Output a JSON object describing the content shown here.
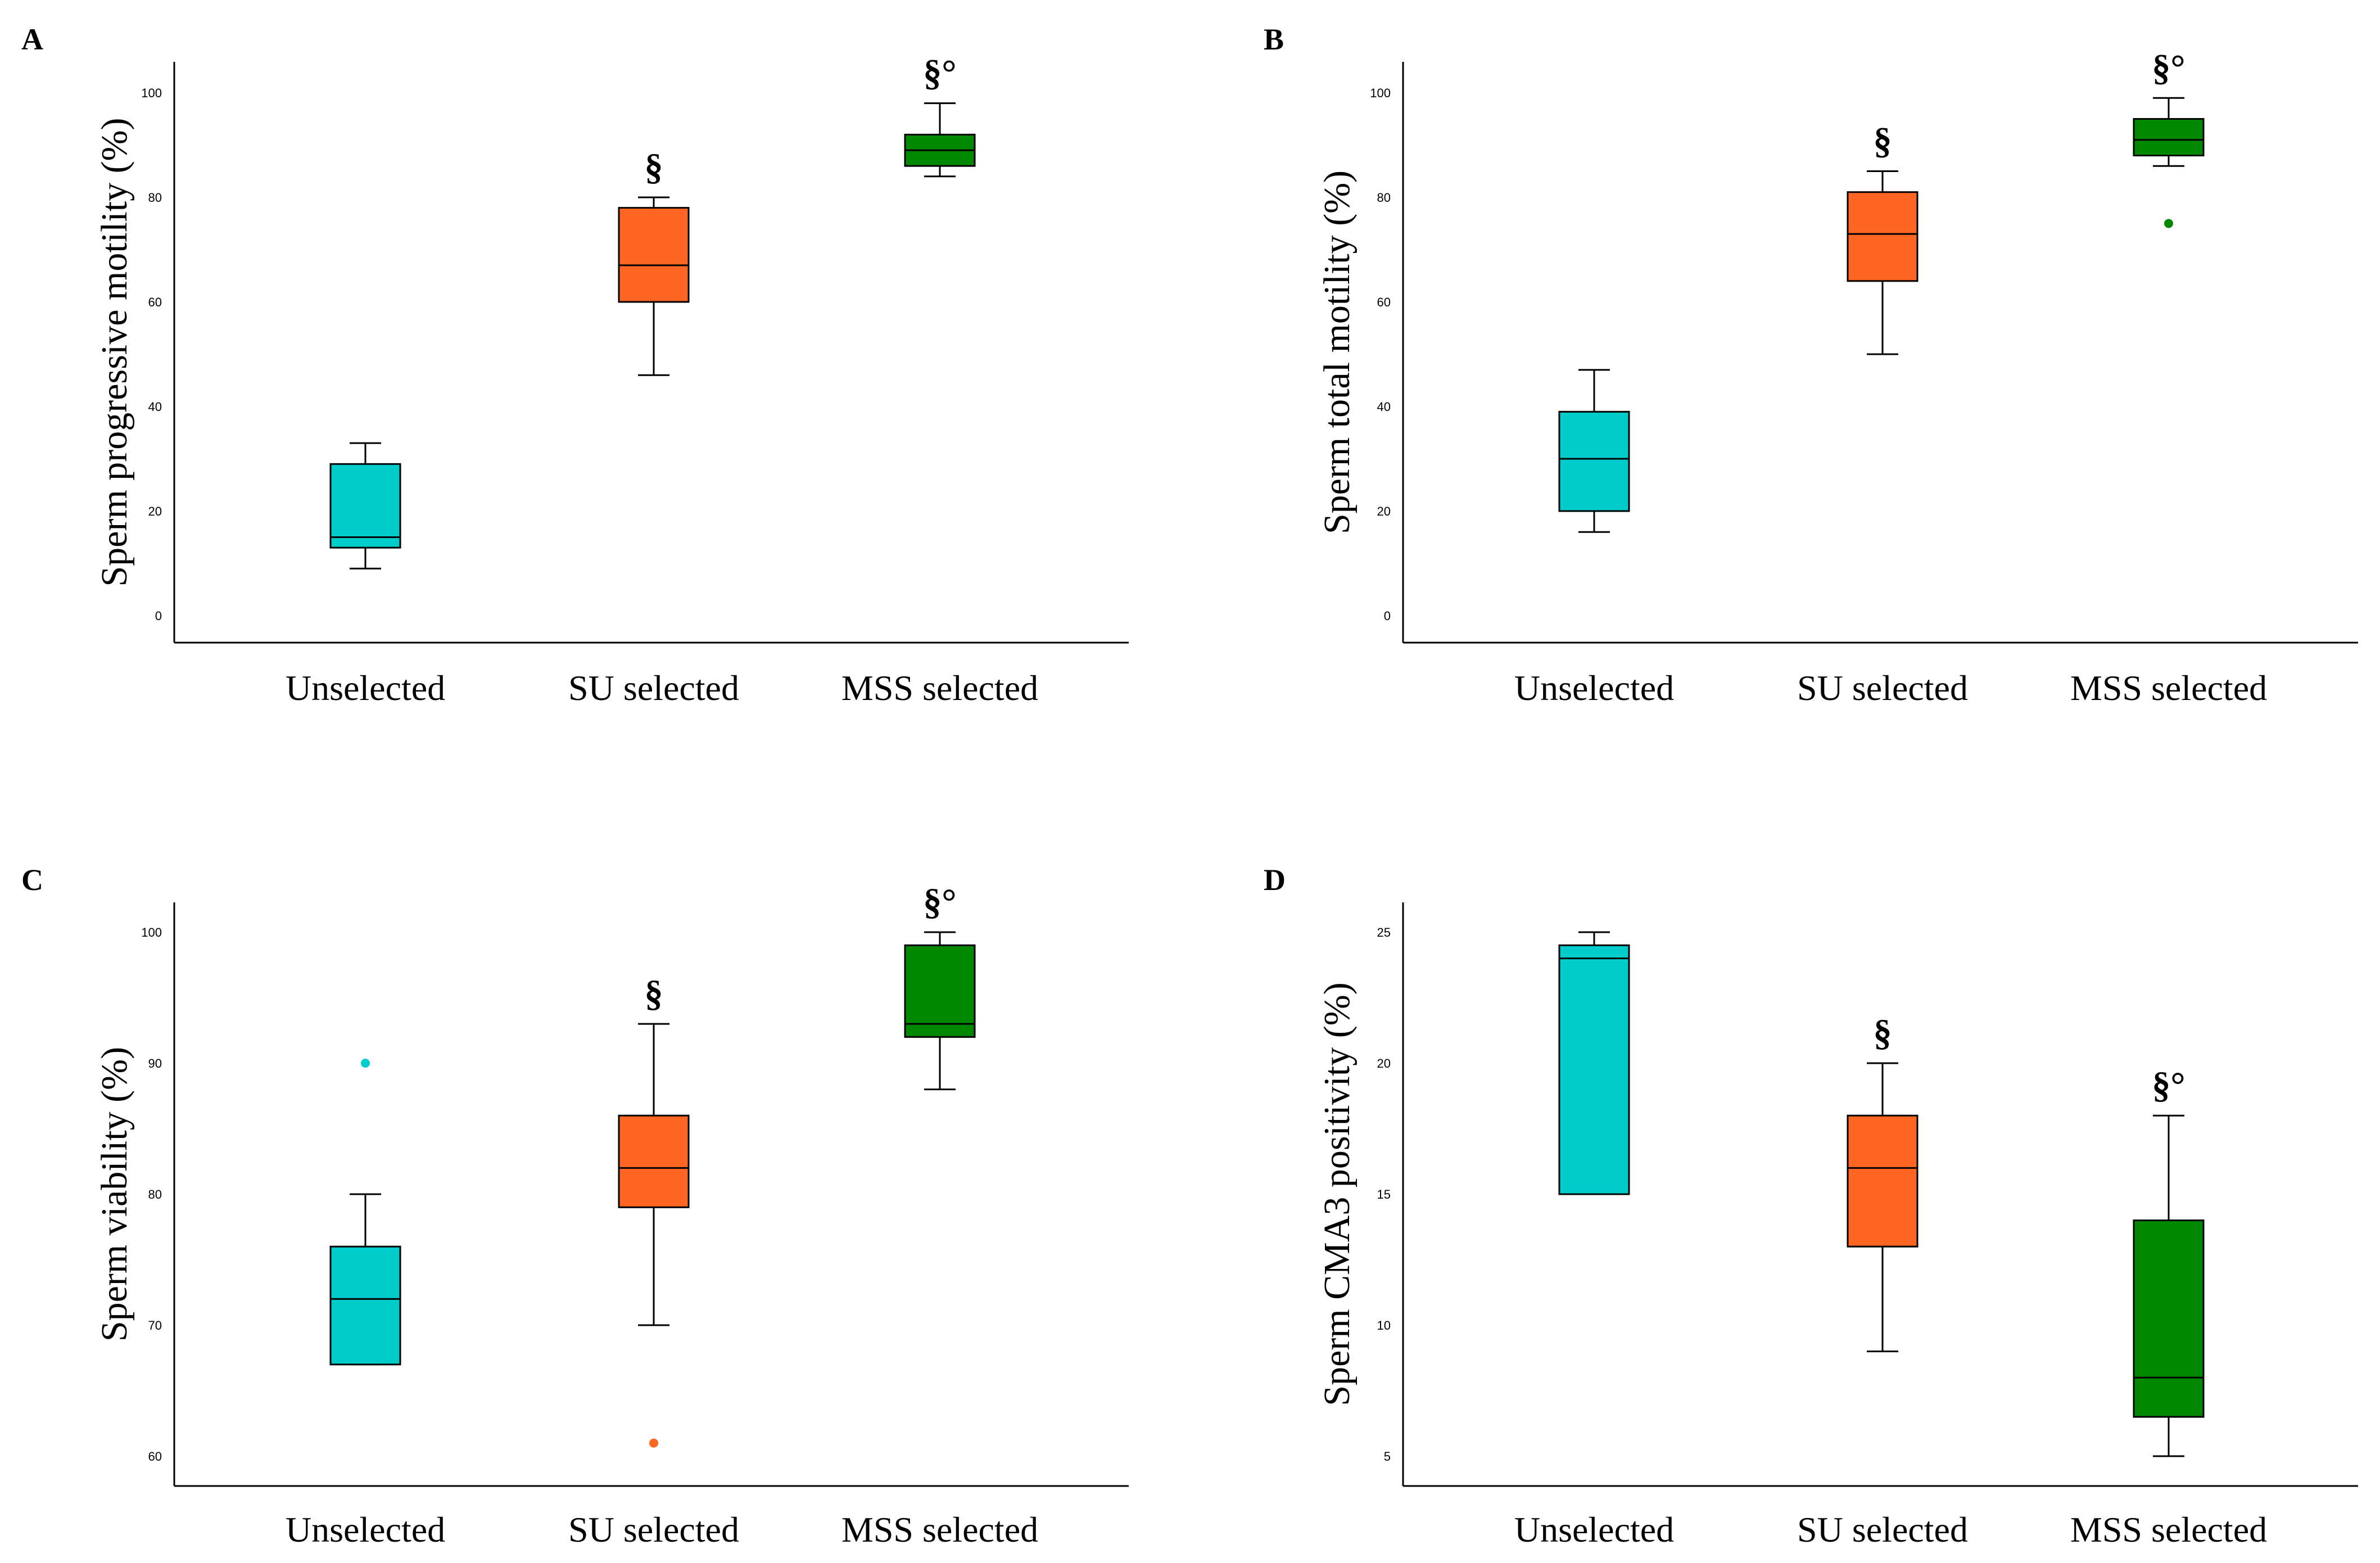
{
  "chart_data": [
    {
      "panel": "A",
      "type": "box",
      "ylabel": "Sperm progressive motility (%)",
      "ylim": [
        0,
        100
      ],
      "yticks": [
        0,
        20,
        40,
        60,
        80,
        100
      ],
      "categories": [
        "Unselected",
        "SU selected",
        "MSS selected"
      ],
      "boxes": [
        {
          "min": 9,
          "q1": 13,
          "median": 15,
          "q3": 29,
          "max": 33,
          "outliers": [],
          "color": "#00CCCC",
          "sig": ""
        },
        {
          "min": 46,
          "q1": 60,
          "median": 67,
          "q3": 78,
          "max": 80,
          "outliers": [],
          "color": "#FF6622",
          "sig": "§"
        },
        {
          "min": 84,
          "q1": 86,
          "median": 89,
          "q3": 92,
          "max": 98,
          "outliers": [],
          "color": "#008800",
          "sig": "§°"
        }
      ]
    },
    {
      "panel": "B",
      "type": "box",
      "ylabel": "Sperm total motility (%)",
      "ylim": [
        0,
        100
      ],
      "yticks": [
        0,
        20,
        40,
        60,
        80,
        100
      ],
      "categories": [
        "Unselected",
        "SU selected",
        "MSS selected"
      ],
      "boxes": [
        {
          "min": 16,
          "q1": 20,
          "median": 30,
          "q3": 39,
          "max": 47,
          "outliers": [],
          "color": "#00CCCC",
          "sig": ""
        },
        {
          "min": 50,
          "q1": 64,
          "median": 73,
          "q3": 81,
          "max": 85,
          "outliers": [],
          "color": "#FF6622",
          "sig": "§"
        },
        {
          "min": 86,
          "q1": 88,
          "median": 91,
          "q3": 95,
          "max": 99,
          "outliers": [
            75
          ],
          "color": "#008800",
          "sig": "§°"
        }
      ]
    },
    {
      "panel": "C",
      "type": "box",
      "ylabel": "Sperm viability (%)",
      "ylim": [
        60,
        100
      ],
      "yticks": [
        60,
        70,
        80,
        90,
        100
      ],
      "categories": [
        "Unselected",
        "SU selected",
        "MSS selected"
      ],
      "boxes": [
        {
          "min": 67,
          "q1": 67,
          "median": 72,
          "q3": 76,
          "max": 80,
          "outliers": [
            90
          ],
          "color": "#00CCCC",
          "sig": ""
        },
        {
          "min": 70,
          "q1": 79,
          "median": 82,
          "q3": 86,
          "max": 93,
          "outliers": [
            61
          ],
          "color": "#FF6622",
          "sig": "§"
        },
        {
          "min": 88,
          "q1": 92,
          "median": 93,
          "q3": 99,
          "max": 100,
          "outliers": [],
          "color": "#008800",
          "sig": "§°"
        }
      ]
    },
    {
      "panel": "D",
      "type": "box",
      "ylabel": "Sperm CMA3 positivity (%)",
      "ylim": [
        5,
        25
      ],
      "yticks": [
        5,
        10,
        15,
        20,
        25
      ],
      "categories": [
        "Unselected",
        "SU selected",
        "MSS selected"
      ],
      "boxes": [
        {
          "min": 15,
          "q1": 15,
          "median": 24,
          "q3": 24.5,
          "max": 25,
          "outliers": [],
          "color": "#00CCCC",
          "sig": ""
        },
        {
          "min": 9,
          "q1": 13,
          "median": 16,
          "q3": 18,
          "max": 20,
          "outliers": [],
          "color": "#FF6622",
          "sig": "§"
        },
        {
          "min": 5,
          "q1": 6.5,
          "median": 8,
          "q3": 14,
          "max": 18,
          "outliers": [],
          "color": "#008800",
          "sig": "§°"
        }
      ]
    }
  ]
}
